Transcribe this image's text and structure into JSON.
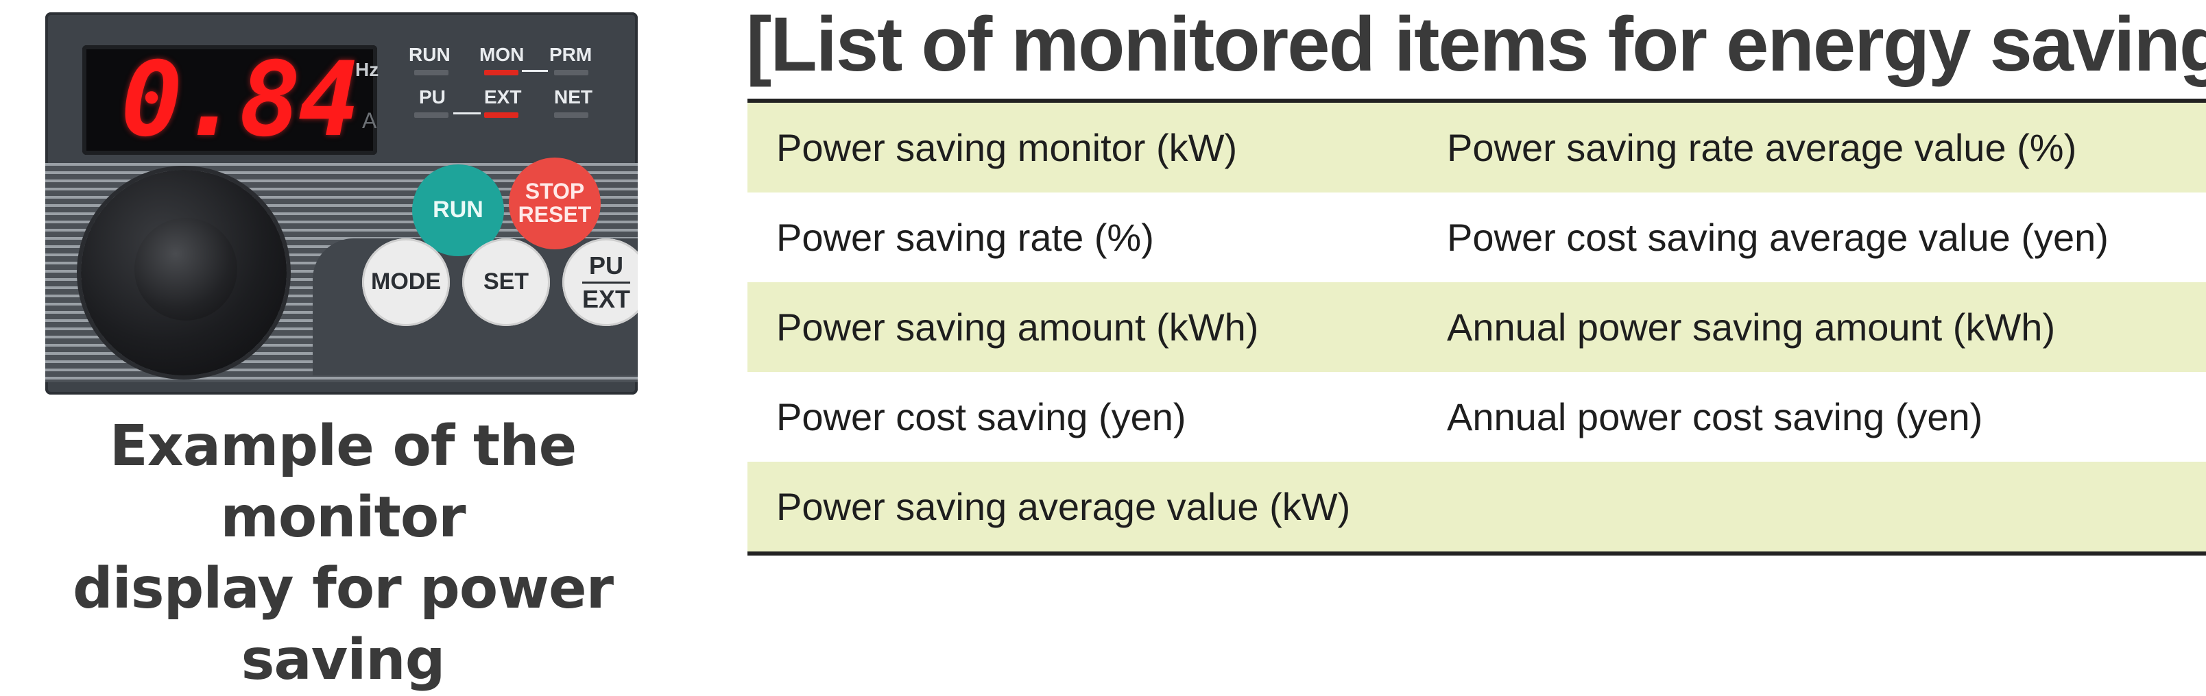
{
  "panel": {
    "display_value": "0.84",
    "unit_hz": "Hz",
    "unit_a": "A",
    "indicators": {
      "run": "RUN",
      "mon": "MON",
      "prm": "PRM",
      "pu": "PU",
      "ext": "EXT",
      "net": "NET"
    },
    "buttons": {
      "run": "RUN",
      "stop": "STOP",
      "reset": "RESET",
      "mode": "MODE",
      "set": "SET",
      "pu": "PU",
      "ext": "EXT"
    },
    "colors": {
      "display_digits": "#ff1a1a",
      "run_button": "#1ea49a",
      "stop_button": "#ea4a43",
      "led_on": "#e0281e"
    }
  },
  "caption": {
    "line1": "Example of the monitor",
    "line2": "display for power saving"
  },
  "list": {
    "heading": "[List of monitored items for energy saving]",
    "rows": [
      {
        "left": "Power saving monitor (kW)",
        "right": "Power saving rate average value (%)"
      },
      {
        "left": "Power saving rate (%)",
        "right": "Power cost saving average value (yen)"
      },
      {
        "left": "Power saving amount (kWh)",
        "right": "Annual power saving amount (kWh)"
      },
      {
        "left": "Power cost saving (yen)",
        "right": "Annual power cost saving (yen)"
      },
      {
        "left": "Power saving average value (kW)",
        "right": ""
      }
    ],
    "row_shade_color": "#ebf0c7"
  }
}
